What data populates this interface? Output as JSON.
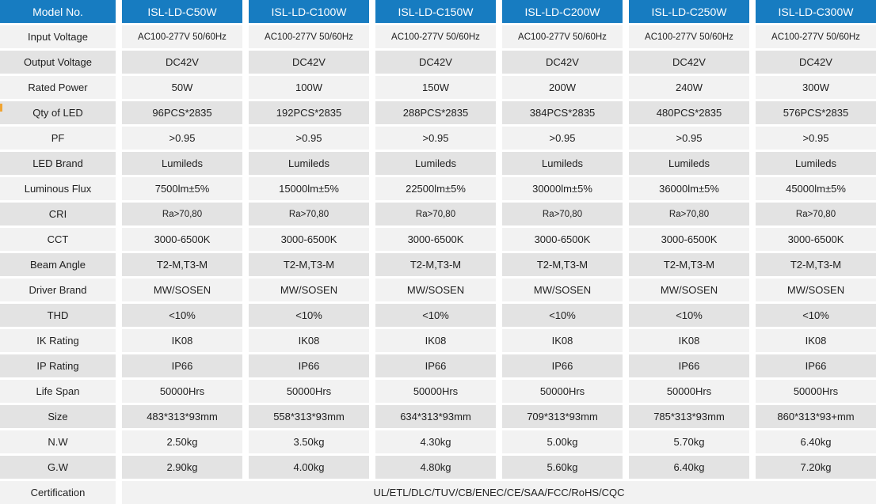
{
  "colors": {
    "header_bg": "#177cc1",
    "header_text": "#ffffff",
    "row_light": "#f2f2f2",
    "row_dark": "#e3e3e3",
    "text_dark": "#212121",
    "accent_mark": "#f0a432"
  },
  "table": {
    "header": [
      "Model No.",
      "ISL-LD-C50W",
      "ISL-LD-C100W",
      "ISL-LD-C150W",
      "ISL-LD-C200W",
      "ISL-LD-C250W",
      "ISL-LD-C300W"
    ],
    "rows": [
      {
        "label": "Input Voltage",
        "values": [
          "AC100-277V 50/60Hz",
          "AC100-277V 50/60Hz",
          "AC100-277V 50/60Hz",
          "AC100-277V 50/60Hz",
          "AC100-277V 50/60Hz",
          "AC100-277V 50/60Hz"
        ]
      },
      {
        "label": "Output Voltage",
        "values": [
          "DC42V",
          "DC42V",
          "DC42V",
          "DC42V",
          "DC42V",
          "DC42V"
        ]
      },
      {
        "label": "Rated Power",
        "values": [
          "50W",
          "100W",
          "150W",
          "200W",
          "240W",
          "300W"
        ]
      },
      {
        "label": "Qty of LED",
        "values": [
          "96PCS*2835",
          "192PCS*2835",
          "288PCS*2835",
          "384PCS*2835",
          "480PCS*2835",
          "576PCS*2835"
        ]
      },
      {
        "label": "PF",
        "values": [
          ">0.95",
          ">0.95",
          ">0.95",
          ">0.95",
          ">0.95",
          ">0.95"
        ]
      },
      {
        "label": "LED Brand",
        "values": [
          "Lumileds",
          "Lumileds",
          "Lumileds",
          "Lumileds",
          "Lumileds",
          "Lumileds"
        ]
      },
      {
        "label": "Luminous Flux",
        "values": [
          "7500lm±5%",
          "15000lm±5%",
          "22500lm±5%",
          "30000lm±5%",
          "36000lm±5%",
          "45000lm±5%"
        ]
      },
      {
        "label": "CRI",
        "values": [
          "Ra>70,80",
          "Ra>70,80",
          "Ra>70,80",
          "Ra>70,80",
          "Ra>70,80",
          "Ra>70,80"
        ]
      },
      {
        "label": "CCT",
        "values": [
          "3000-6500K",
          "3000-6500K",
          "3000-6500K",
          "3000-6500K",
          "3000-6500K",
          "3000-6500K"
        ]
      },
      {
        "label": "Beam Angle",
        "values": [
          "T2-M,T3-M",
          "T2-M,T3-M",
          "T2-M,T3-M",
          "T2-M,T3-M",
          "T2-M,T3-M",
          "T2-M,T3-M"
        ]
      },
      {
        "label": "Driver Brand",
        "values": [
          "MW/SOSEN",
          "MW/SOSEN",
          "MW/SOSEN",
          "MW/SOSEN",
          "MW/SOSEN",
          "MW/SOSEN"
        ]
      },
      {
        "label": "THD",
        "values": [
          "<10%",
          "<10%",
          "<10%",
          "<10%",
          "<10%",
          "<10%"
        ]
      },
      {
        "label": "IK Rating",
        "values": [
          "IK08",
          "IK08",
          "IK08",
          "IK08",
          "IK08",
          "IK08"
        ]
      },
      {
        "label": "IP Rating",
        "values": [
          "IP66",
          "IP66",
          "IP66",
          "IP66",
          "IP66",
          "IP66"
        ]
      },
      {
        "label": "Life Span",
        "values": [
          "50000Hrs",
          "50000Hrs",
          "50000Hrs",
          "50000Hrs",
          "50000Hrs",
          "50000Hrs"
        ]
      },
      {
        "label": "Size",
        "values": [
          "483*313*93mm",
          "558*313*93mm",
          "634*313*93mm",
          "709*313*93mm",
          "785*313*93mm",
          "860*313*93+mm"
        ]
      },
      {
        "label": "N.W",
        "values": [
          "2.50kg",
          "3.50kg",
          "4.30kg",
          "5.00kg",
          "5.70kg",
          "6.40kg"
        ]
      },
      {
        "label": "G.W",
        "values": [
          "2.90kg",
          "4.00kg",
          "4.80kg",
          "5.60kg",
          "6.40kg",
          "7.20kg"
        ]
      },
      {
        "label": "Certification",
        "merged_value": "UL/ETL/DLC/TUV/CB/ENEC/CE/SAA/FCC/RoHS/CQC"
      }
    ]
  }
}
